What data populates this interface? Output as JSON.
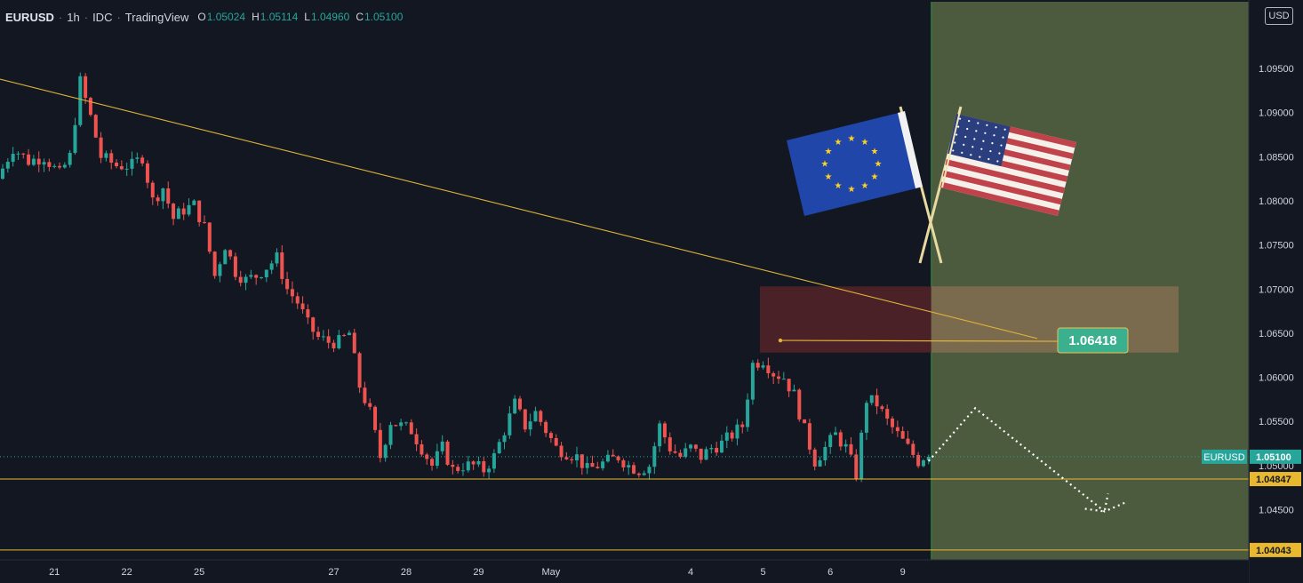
{
  "header": {
    "symbol": "EURUSD",
    "interval": "1h",
    "exchange": "IDC",
    "source": "TradingView",
    "open_label": "O",
    "open": "1.05024",
    "high_label": "H",
    "high": "1.05114",
    "low_label": "L",
    "low": "1.04960",
    "close_label": "C",
    "close": "1.05100"
  },
  "currency_button": "USD",
  "chart_data": {
    "type": "candlestick",
    "symbol": "EURUSD",
    "timeframe": "1h",
    "y_axis": {
      "min": 1.039,
      "max": 1.1,
      "ticks": [
        "1.09500",
        "1.09000",
        "1.08500",
        "1.08000",
        "1.07500",
        "1.07000",
        "1.06500",
        "1.06000",
        "1.05500",
        "1.05000",
        "1.04500"
      ]
    },
    "x_axis": {
      "ticks": [
        {
          "label": "21",
          "bar": 10
        },
        {
          "label": "22",
          "bar": 24
        },
        {
          "label": "25",
          "bar": 38
        },
        {
          "label": "27",
          "bar": 64
        },
        {
          "label": "28",
          "bar": 78
        },
        {
          "label": "29",
          "bar": 92
        },
        {
          "label": "May",
          "bar": 106
        },
        {
          "label": "4",
          "bar": 133
        },
        {
          "label": "5",
          "bar": 147
        },
        {
          "label": "6",
          "bar": 160
        },
        {
          "label": "9",
          "bar": 174
        }
      ]
    },
    "bar_count": 180,
    "keypoints": [
      [
        0,
        1.0825
      ],
      [
        3,
        1.086
      ],
      [
        6,
        1.0845
      ],
      [
        9,
        1.085
      ],
      [
        12,
        1.083
      ],
      [
        14,
        1.085
      ],
      [
        16,
        1.0935
      ],
      [
        18,
        1.0895
      ],
      [
        20,
        1.085
      ],
      [
        23,
        1.084
      ],
      [
        26,
        1.084
      ],
      [
        28,
        1.085
      ],
      [
        30,
        1.08
      ],
      [
        32,
        1.0815
      ],
      [
        34,
        1.078
      ],
      [
        36,
        1.079
      ],
      [
        38,
        1.0795
      ],
      [
        40,
        1.077
      ],
      [
        42,
        1.0715
      ],
      [
        44,
        1.075
      ],
      [
        46,
        1.072
      ],
      [
        48,
        1.071
      ],
      [
        50,
        1.0715
      ],
      [
        52,
        1.0725
      ],
      [
        54,
        1.0735
      ],
      [
        56,
        1.07
      ],
      [
        58,
        1.0685
      ],
      [
        60,
        1.066
      ],
      [
        62,
        1.0645
      ],
      [
        64,
        1.064
      ],
      [
        66,
        1.064
      ],
      [
        68,
        1.065
      ],
      [
        70,
        1.059
      ],
      [
        72,
        1.056
      ],
      [
        74,
        1.051
      ],
      [
        76,
        1.055
      ],
      [
        78,
        1.0545
      ],
      [
        80,
        1.054
      ],
      [
        82,
        1.052
      ],
      [
        84,
        1.05
      ],
      [
        86,
        1.052
      ],
      [
        88,
        1.0495
      ],
      [
        90,
        1.05
      ],
      [
        92,
        1.05
      ],
      [
        94,
        1.0495
      ],
      [
        96,
        1.051
      ],
      [
        98,
        1.054
      ],
      [
        100,
        1.057
      ],
      [
        102,
        1.0545
      ],
      [
        104,
        1.056
      ],
      [
        106,
        1.054
      ],
      [
        108,
        1.052
      ],
      [
        110,
        1.0515
      ],
      [
        112,
        1.051
      ],
      [
        114,
        1.0495
      ],
      [
        116,
        1.05
      ],
      [
        118,
        1.0505
      ],
      [
        120,
        1.051
      ],
      [
        122,
        1.05
      ],
      [
        124,
        1.0495
      ],
      [
        126,
        1.05
      ],
      [
        128,
        1.0545
      ],
      [
        130,
        1.052
      ],
      [
        132,
        1.051
      ],
      [
        134,
        1.052
      ],
      [
        136,
        1.051
      ],
      [
        138,
        1.052
      ],
      [
        140,
        1.0525
      ],
      [
        142,
        1.0535
      ],
      [
        144,
        1.0545
      ],
      [
        146,
        1.0615
      ],
      [
        148,
        1.062
      ],
      [
        150,
        1.0605
      ],
      [
        152,
        1.06
      ],
      [
        154,
        1.058
      ],
      [
        156,
        1.054
      ],
      [
        158,
        1.0505
      ],
      [
        160,
        1.052
      ],
      [
        162,
        1.0535
      ],
      [
        164,
        1.052
      ],
      [
        166,
        1.049
      ],
      [
        168,
        1.0575
      ],
      [
        170,
        1.057
      ],
      [
        172,
        1.055
      ],
      [
        174,
        1.0535
      ],
      [
        176,
        1.052
      ],
      [
        178,
        1.0505
      ],
      [
        179,
        1.051
      ]
    ],
    "last_price": "1.05100",
    "last_price_label": "EURUSD",
    "support_level": "1.04847",
    "lower_level": "1.04043",
    "annotation_price": "1.06418",
    "resistance_zone": [
      1.0628,
      1.0703
    ],
    "trendline": [
      [
        -2,
        1.094
      ],
      [
        200,
        1.0644
      ]
    ],
    "projection_path": [
      [
        0,
        1.0505
      ],
      [
        9,
        1.0565
      ],
      [
        34,
        1.0448
      ],
      [
        38,
        1.0458
      ]
    ],
    "grid": false
  },
  "colors": {
    "background": "#131722",
    "up": "#26a69a",
    "down": "#ef5350",
    "trendline": "#e0b23a",
    "support": "#e8b930",
    "forecast_zone": "#4c5a3e",
    "resistance_zone": "#4a2126",
    "label_green": "#3bb08f",
    "axis_text": "#d1d4dc"
  }
}
